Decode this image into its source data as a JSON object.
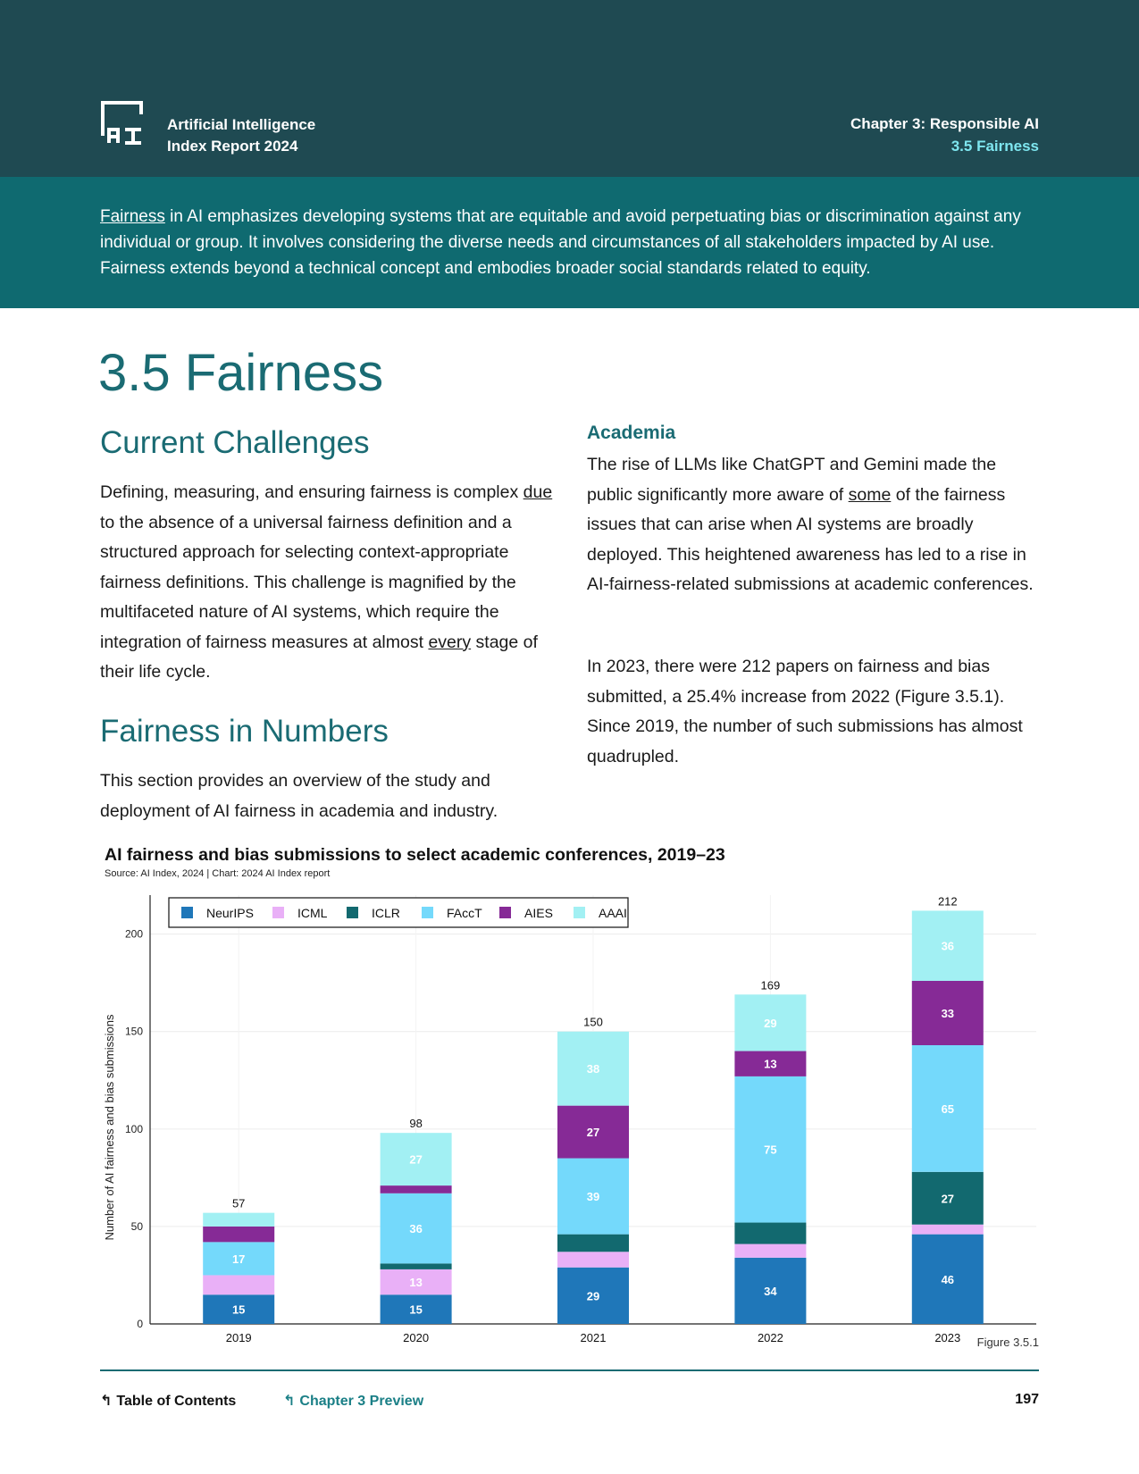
{
  "header": {
    "logo_line1": "Artificial Intelligence",
    "logo_line2": "Index Report 2024",
    "chapter": "Chapter 3: Responsible AI",
    "section": "3.5 Fairness"
  },
  "intro": {
    "link_word": "Fairness",
    "text": " in AI emphasizes developing systems that are equitable and avoid perpetuating bias or discrimination against any individual or group. It involves considering the diverse needs and circumstances of all stakeholders impacted by AI use. Fairness extends beyond a technical concept and embodies broader social standards related to equity."
  },
  "page_title": "3.5 Fairness",
  "left": {
    "heading1": "Current Challenges",
    "p1_a": "Defining, measuring, and ensuring fairness is complex ",
    "p1_link1": "due",
    "p1_b": " to the absence of a universal fairness definition and a structured approach for selecting context-appropriate fairness definitions. This challenge is magnified by the multifaceted nature of AI systems, which require the integration of fairness measures at almost ",
    "p1_link2": "every",
    "p1_c": " stage of their life cycle.",
    "heading2": "Fairness in Numbers",
    "p2": "This section provides an overview of the study and deployment of AI fairness in academia and industry."
  },
  "right": {
    "heading": "Academia",
    "p1_a": "The rise of LLMs like ChatGPT and Gemini made the public significantly more aware of ",
    "p1_link": "some",
    "p1_b": " of the fairness issues that can arise when AI systems are broadly deployed. This heightened awareness has led to a rise in AI-fairness-related submissions at academic conferences.",
    "p2": "In 2023, there were 212 papers on fairness and bias submitted, a 25.4% increase from 2022 (Figure 3.5.1). Since 2019, the number of such submissions has almost quadrupled."
  },
  "chart_data": {
    "type": "bar",
    "stacked": true,
    "title": "AI fairness and bias submissions to select academic conferences, 2019–23",
    "source": "Source: AI Index, 2024 | Chart: 2024 AI Index report",
    "xlabel": "",
    "ylabel": "Number of AI fairness and bias submissions",
    "ylim": [
      0,
      220
    ],
    "yticks": [
      0,
      50,
      100,
      150,
      200
    ],
    "categories": [
      "2019",
      "2020",
      "2021",
      "2022",
      "2023"
    ],
    "totals": [
      57,
      98,
      150,
      169,
      212
    ],
    "series": [
      {
        "name": "NeurIPS",
        "color": "#1f77b9",
        "values": [
          15,
          15,
          29,
          34,
          46
        ],
        "labels": [
          "15",
          "15",
          "29",
          "34",
          "46"
        ]
      },
      {
        "name": "ICML",
        "color": "#e9b0f7",
        "values": [
          10,
          13,
          8,
          7,
          5
        ],
        "labels": [
          "",
          "13",
          "",
          "",
          ""
        ]
      },
      {
        "name": "ICLR",
        "color": "#12696f",
        "values": [
          0,
          3,
          9,
          11,
          27
        ],
        "labels": [
          "",
          "",
          "",
          "",
          "27"
        ]
      },
      {
        "name": "FAccT",
        "color": "#74d9fb",
        "values": [
          17,
          36,
          39,
          75,
          65
        ],
        "labels": [
          "17",
          "36",
          "39",
          "75",
          "65"
        ]
      },
      {
        "name": "AIES",
        "color": "#862a96",
        "values": [
          8,
          4,
          27,
          13,
          33
        ],
        "labels": [
          "",
          "",
          "27",
          "13",
          "33"
        ]
      },
      {
        "name": "AAAI",
        "color": "#a2f0f3",
        "values": [
          7,
          27,
          38,
          29,
          36
        ],
        "labels": [
          "",
          "27",
          "38",
          "29",
          "36"
        ]
      }
    ],
    "legend_position": "top-left",
    "figure_label": "Figure 3.5.1"
  },
  "footer": {
    "toc": "Table of Contents",
    "preview": "Chapter 3 Preview",
    "page": "197"
  },
  "colors": {
    "header_bg": "#1f4a52",
    "intro_bg": "#0f6a70",
    "accent": "#1a6b73",
    "section_label": "#7ee6ef"
  }
}
